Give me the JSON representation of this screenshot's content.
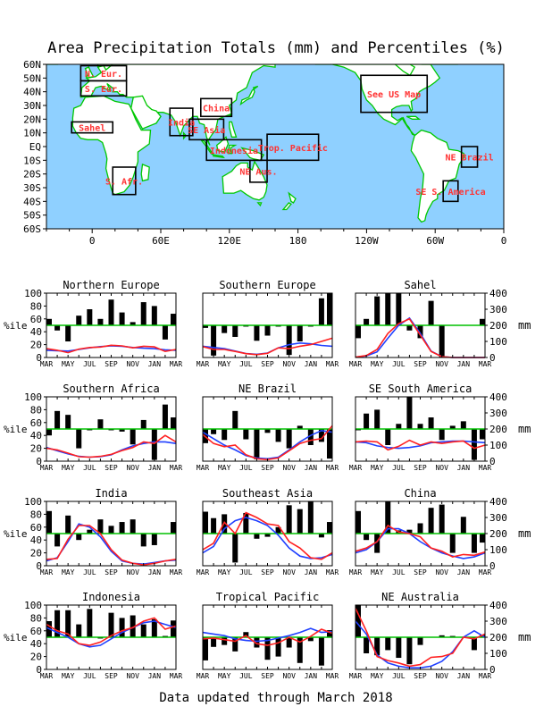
{
  "title": "Area Precipitation Totals (mm) and Percentiles (%)",
  "footer": "Data updated through March 2018",
  "colors": {
    "ocean": "#8fd0ff",
    "land": "#ffffff",
    "coast": "#00c800",
    "region_label": "#ff3333",
    "bars": "#000000",
    "line_observed": "#ff2020",
    "line_normal": "#2040ff",
    "line_fiftieth": "#00c000"
  },
  "map": {
    "lat_ticks": [
      "60N",
      "50N",
      "40N",
      "30N",
      "20N",
      "10N",
      "EQ",
      "10S",
      "20S",
      "30S",
      "40S",
      "50S",
      "60S"
    ],
    "lon_ticks": [
      {
        "label": "0",
        "lon": 0
      },
      {
        "label": "60E",
        "lon": 60
      },
      {
        "label": "120E",
        "lon": 120
      },
      {
        "label": "180",
        "lon": 180
      },
      {
        "label": "120W",
        "lon": 240
      },
      {
        "label": "60W",
        "lon": 300
      },
      {
        "label": "0",
        "lon": 360
      }
    ],
    "regions": [
      {
        "label": "N. Eur.",
        "lon0": -10,
        "lon1": 30,
        "lat0": 48,
        "lat1": 59
      },
      {
        "label": "S. Eur.",
        "lon0": -10,
        "lon1": 30,
        "lat0": 37,
        "lat1": 48
      },
      {
        "label": "Sahel",
        "lon0": -18,
        "lon1": 18,
        "lat0": 10,
        "lat1": 18
      },
      {
        "label": "S. Afr.",
        "lon0": 18,
        "lon1": 38,
        "lat0": -35,
        "lat1": -15
      },
      {
        "label": "India",
        "lon0": 68,
        "lon1": 88,
        "lat0": 8,
        "lat1": 28
      },
      {
        "label": "SE Asia",
        "lon0": 85,
        "lon1": 115,
        "lat0": 5,
        "lat1": 20
      },
      {
        "label": "China",
        "lon0": 95,
        "lon1": 122,
        "lat0": 22,
        "lat1": 35
      },
      {
        "label": "Indonesia",
        "lon0": 100,
        "lon1": 148,
        "lat0": -10,
        "lat1": 5
      },
      {
        "label": "NE Aus.",
        "lon0": 138,
        "lon1": 153,
        "lat0": -26,
        "lat1": -10
      },
      {
        "label": "Trop. Pacific",
        "lon0": 153,
        "lon1": 198,
        "lat0": -10,
        "lat1": 9
      },
      {
        "label": "See US Map",
        "lon0": 235,
        "lon1": 293,
        "lat0": 25,
        "lat1": 52
      },
      {
        "label": "NE Brazil",
        "lon0": 323,
        "lon1": 337,
        "lat0": -15,
        "lat1": 0
      },
      {
        "label": "SE S. America",
        "lon0": 307,
        "lon1": 320,
        "lat0": -40,
        "lat1": -25
      }
    ]
  },
  "chart_data": [
    {
      "type": "bar",
      "title": "Northern Europe",
      "percentiles": [
        60,
        42,
        25,
        65,
        75,
        60,
        90,
        70,
        55,
        86,
        80,
        28,
        68
      ],
      "normal_mm": [
        45,
        42,
        40,
        50,
        60,
        68,
        72,
        70,
        62,
        58,
        55,
        48,
        45
      ],
      "observed_mm": [
        55,
        45,
        30,
        52,
        62,
        65,
        76,
        72,
        60,
        70,
        66,
        38,
        50
      ]
    },
    {
      "type": "bar",
      "title": "Southern Europe",
      "percentiles": [
        46,
        3,
        38,
        32,
        48,
        26,
        34,
        48,
        4,
        25,
        48,
        92,
        100
      ],
      "normal_mm": [
        70,
        62,
        55,
        40,
        25,
        20,
        28,
        60,
        80,
        90,
        85,
        75,
        70
      ],
      "observed_mm": [
        68,
        50,
        50,
        38,
        24,
        18,
        26,
        60,
        55,
        70,
        80,
        100,
        120
      ]
    },
    {
      "type": "bar",
      "title": "Sahel",
      "percentiles": [
        30,
        60,
        95,
        100,
        100,
        42,
        30,
        88,
        0,
        50,
        50,
        50,
        60
      ],
      "normal_mm": [
        2,
        10,
        35,
        120,
        200,
        245,
        150,
        40,
        5,
        0,
        0,
        0,
        0
      ],
      "observed_mm": [
        2,
        12,
        50,
        150,
        210,
        240,
        140,
        38,
        5,
        0,
        0,
        0,
        0
      ]
    },
    {
      "type": "bar",
      "title": "Southern Africa",
      "percentiles": [
        40,
        78,
        72,
        20,
        48,
        65,
        48,
        46,
        26,
        64,
        2,
        88,
        68
      ],
      "normal_mm": [
        85,
        65,
        45,
        30,
        25,
        28,
        40,
        70,
        95,
        110,
        120,
        120,
        110
      ],
      "observed_mm": [
        80,
        70,
        50,
        28,
        25,
        30,
        42,
        66,
        85,
        120,
        110,
        160,
        120
      ]
    },
    {
      "type": "bar",
      "title": "NE Brazil",
      "percentiles": [
        28,
        42,
        33,
        78,
        34,
        3,
        44,
        30,
        20,
        55,
        25,
        30,
        4
      ],
      "normal_mm": [
        180,
        140,
        100,
        70,
        35,
        20,
        15,
        25,
        70,
        120,
        160,
        190,
        180
      ],
      "observed_mm": [
        165,
        110,
        90,
        100,
        40,
        15,
        10,
        20,
        65,
        110,
        130,
        140,
        220
      ]
    },
    {
      "type": "bar",
      "title": "SE South America",
      "percentiles": [
        48,
        74,
        80,
        25,
        58,
        100,
        58,
        68,
        33,
        55,
        62,
        2,
        34
      ],
      "normal_mm": [
        120,
        115,
        95,
        85,
        80,
        85,
        95,
        115,
        120,
        125,
        125,
        120,
        115
      ],
      "observed_mm": [
        120,
        125,
        120,
        70,
        92,
        130,
        100,
        120,
        110,
        120,
        125,
        80,
        100
      ]
    },
    {
      "type": "bar",
      "title": "India",
      "percentiles": [
        85,
        30,
        78,
        40,
        56,
        72,
        62,
        68,
        72,
        30,
        32,
        50,
        68
      ],
      "normal_mm": [
        30,
        50,
        150,
        260,
        240,
        180,
        90,
        30,
        15,
        10,
        20,
        30,
        35
      ],
      "observed_mm": [
        40,
        45,
        165,
        250,
        250,
        200,
        100,
        35,
        15,
        5,
        15,
        30,
        40
      ]
    },
    {
      "type": "bar",
      "title": "Southeast Asia",
      "percentiles": [
        84,
        74,
        80,
        5,
        82,
        42,
        45,
        60,
        94,
        88,
        100,
        44,
        68
      ],
      "normal_mm": [
        80,
        120,
        230,
        280,
        300,
        280,
        250,
        190,
        110,
        60,
        45,
        50,
        70
      ],
      "observed_mm": [
        100,
        140,
        270,
        200,
        330,
        300,
        260,
        250,
        150,
        110,
        50,
        40,
        80
      ]
    },
    {
      "type": "bar",
      "title": "China",
      "percentiles": [
        85,
        40,
        20,
        100,
        55,
        56,
        66,
        90,
        95,
        20,
        76,
        20,
        36
      ],
      "normal_mm": [
        80,
        100,
        150,
        230,
        230,
        200,
        150,
        110,
        80,
        60,
        45,
        55,
        80
      ],
      "observed_mm": [
        90,
        110,
        150,
        250,
        210,
        200,
        180,
        110,
        90,
        55,
        70,
        65,
        85
      ]
    },
    {
      "type": "bar",
      "title": "Indonesia",
      "percentiles": [
        75,
        92,
        92,
        70,
        94,
        48,
        88,
        80,
        84,
        70,
        78,
        52,
        76
      ],
      "normal_mm": [
        260,
        230,
        200,
        160,
        140,
        150,
        190,
        230,
        260,
        290,
        300,
        280,
        260
      ],
      "observed_mm": [
        280,
        240,
        220,
        160,
        150,
        170,
        210,
        240,
        260,
        300,
        320,
        250,
        270
      ]
    },
    {
      "type": "bar",
      "title": "Tropical Pacific",
      "percentiles": [
        14,
        35,
        38,
        28,
        58,
        34,
        15,
        20,
        34,
        10,
        44,
        6,
        61
      ],
      "normal_mm": [
        230,
        220,
        210,
        190,
        180,
        175,
        180,
        195,
        210,
        230,
        255,
        230,
        235
      ],
      "observed_mm": [
        190,
        195,
        185,
        175,
        210,
        160,
        150,
        165,
        200,
        170,
        205,
        250,
        225
      ]
    },
    {
      "type": "bar",
      "title": "NE Australia",
      "percentiles": [
        100,
        25,
        22,
        30,
        18,
        8,
        38,
        50,
        53,
        52,
        50,
        30,
        54
      ],
      "normal_mm": [
        300,
        220,
        90,
        40,
        20,
        10,
        10,
        20,
        50,
        110,
        200,
        240,
        200
      ],
      "observed_mm": [
        380,
        240,
        80,
        55,
        40,
        20,
        30,
        75,
        80,
        100,
        200,
        190,
        220
      ]
    }
  ],
  "axes": {
    "months": [
      "MAR",
      "MAY",
      "JUL",
      "SEP",
      "NOV",
      "JAN",
      "MAR"
    ],
    "left_ticks": [
      "0",
      "20",
      "40",
      "60",
      "80",
      "100"
    ],
    "right_ticks": [
      "0",
      "100",
      "200",
      "300",
      "400"
    ],
    "left_label": "%ile",
    "right_label": "mm"
  }
}
